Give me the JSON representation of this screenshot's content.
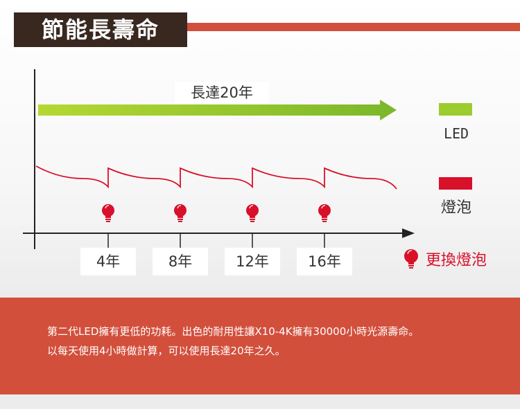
{
  "header": {
    "title": "節能長壽命"
  },
  "diagram": {
    "led_duration_label": "長達20年",
    "year_labels": [
      "4年",
      "8年",
      "12年",
      "16年"
    ],
    "colors": {
      "led_green": "#9ccc2d",
      "bulb_red": "#d8102a",
      "accent": "#d24f3c",
      "title_bg": "#382820"
    }
  },
  "legend": {
    "led_label": "LED",
    "bulb_label": "燈泡",
    "replace_label": "更換燈泡"
  },
  "description": {
    "line1": "第二代LED擁有更低的功耗。出色的耐用性讓X10-4K擁有30000小時光源壽命。",
    "line2": "以每天使用4小時做計算，可以使用長達20年之久。"
  }
}
